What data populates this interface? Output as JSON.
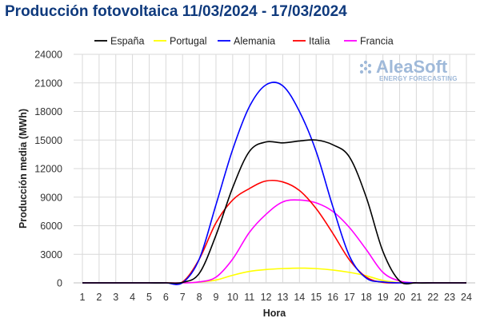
{
  "chart_data": {
    "type": "line",
    "title": "Producción fotovoltaica 11/03/2024 - 17/03/2024",
    "xlabel": "Hora",
    "ylabel": "Producción media (MWh)",
    "categories": [
      1,
      2,
      3,
      4,
      5,
      6,
      7,
      8,
      9,
      10,
      11,
      12,
      13,
      14,
      15,
      16,
      17,
      18,
      19,
      20,
      21,
      22,
      23,
      24
    ],
    "ylim": [
      0,
      24000
    ],
    "yticks": [
      0,
      3000,
      6000,
      9000,
      12000,
      15000,
      18000,
      21000,
      24000
    ],
    "grid": "horizontal and vertical",
    "legend_position": "top",
    "series": [
      {
        "name": "España",
        "color": "#000000",
        "values": [
          0,
          0,
          0,
          0,
          0,
          0,
          50,
          1000,
          5000,
          10000,
          13800,
          14800,
          14700,
          14900,
          15000,
          14500,
          13200,
          9000,
          3300,
          200,
          0,
          0,
          0,
          0
        ]
      },
      {
        "name": "Portugal",
        "color": "#ffff00",
        "values": [
          0,
          0,
          0,
          0,
          0,
          0,
          0,
          80,
          300,
          800,
          1200,
          1400,
          1500,
          1550,
          1500,
          1350,
          1100,
          750,
          250,
          30,
          0,
          0,
          0,
          0
        ]
      },
      {
        "name": "Alemania",
        "color": "#0000ff",
        "values": [
          0,
          0,
          0,
          0,
          0,
          0,
          20,
          2500,
          8200,
          14000,
          18500,
          20800,
          20700,
          18000,
          13800,
          8000,
          2800,
          500,
          100,
          0,
          0,
          0,
          0,
          0
        ]
      },
      {
        "name": "Italia",
        "color": "#ff0000",
        "values": [
          0,
          0,
          0,
          0,
          0,
          0,
          100,
          2500,
          6300,
          8700,
          9900,
          10700,
          10600,
          9700,
          7800,
          5200,
          2400,
          600,
          50,
          0,
          0,
          0,
          0,
          0
        ]
      },
      {
        "name": "Francia",
        "color": "#ff00ff",
        "values": [
          0,
          0,
          0,
          0,
          0,
          0,
          0,
          100,
          600,
          2500,
          5300,
          7200,
          8500,
          8700,
          8400,
          7500,
          5800,
          3500,
          1100,
          200,
          0,
          0,
          0,
          0
        ]
      }
    ]
  },
  "brand": {
    "name": "AleaSoft",
    "tagline": "ENERGY FORECASTING"
  }
}
